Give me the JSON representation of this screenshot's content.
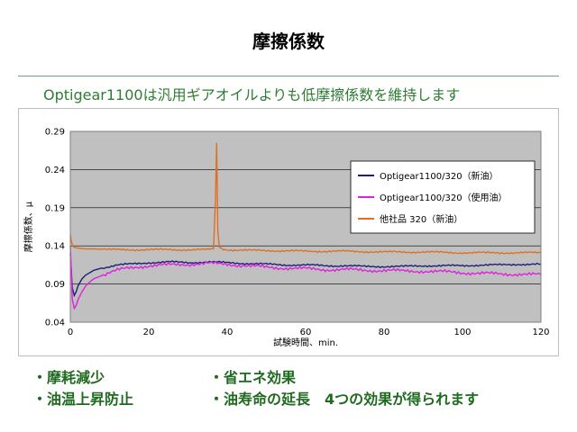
{
  "slide": {
    "title": "摩擦係数",
    "subtitle": "Optigear1100は汎用ギアオイルよりも低摩擦係数を維持します"
  },
  "bullets": {
    "left": [
      "・摩耗減少",
      "・油温上昇防止"
    ],
    "right": [
      "・省エネ効果",
      "・油寿命の延長　4つの効果が得られます"
    ]
  },
  "chart_data": {
    "type": "line",
    "title": "",
    "xlabel": "試験時間、min.",
    "ylabel": "摩擦係数、μ",
    "xlim": [
      0,
      120
    ],
    "ylim": [
      0.04,
      0.29
    ],
    "xticks": [
      0,
      20,
      40,
      60,
      80,
      100,
      120
    ],
    "yticks": [
      0.04,
      0.09,
      0.14,
      0.19,
      0.24,
      0.29
    ],
    "grid": true,
    "legend_position": "top-right",
    "colors": {
      "plot_bg": "#c0c0c0",
      "grid": "#000000"
    },
    "series": [
      {
        "name": "Optigear1100/320（新油）",
        "color": "#1f1f7a",
        "x": [
          0,
          0.5,
          1,
          1.5,
          2,
          3,
          4,
          5,
          6,
          8,
          10,
          12,
          15,
          18,
          20,
          25,
          30,
          35,
          40,
          45,
          50,
          55,
          60,
          65,
          70,
          75,
          80,
          85,
          90,
          95,
          100,
          105,
          110,
          115,
          120
        ],
        "y": [
          0.13,
          0.085,
          0.075,
          0.08,
          0.088,
          0.097,
          0.102,
          0.105,
          0.108,
          0.111,
          0.113,
          0.115,
          0.116,
          0.117,
          0.118,
          0.119,
          0.118,
          0.119,
          0.118,
          0.117,
          0.116,
          0.115,
          0.115,
          0.114,
          0.114,
          0.113,
          0.113,
          0.113,
          0.114,
          0.114,
          0.114,
          0.115,
          0.115,
          0.116,
          0.116
        ]
      },
      {
        "name": "Optigear1100/320（使用油）",
        "color": "#e020e0",
        "x": [
          0,
          0.5,
          1,
          1.5,
          2,
          3,
          4,
          5,
          6,
          8,
          10,
          12,
          15,
          18,
          20,
          25,
          30,
          35,
          40,
          45,
          50,
          55,
          60,
          65,
          70,
          75,
          80,
          85,
          90,
          95,
          100,
          105,
          110,
          115,
          120
        ],
        "y": [
          0.14,
          0.07,
          0.058,
          0.062,
          0.07,
          0.08,
          0.088,
          0.093,
          0.097,
          0.101,
          0.105,
          0.108,
          0.111,
          0.113,
          0.114,
          0.115,
          0.116,
          0.117,
          0.116,
          0.114,
          0.112,
          0.111,
          0.11,
          0.109,
          0.109,
          0.108,
          0.108,
          0.107,
          0.107,
          0.106,
          0.105,
          0.104,
          0.103,
          0.103,
          0.102
        ]
      },
      {
        "name": "他社品 320（新油）",
        "color": "#e07020",
        "x": [
          0,
          0.3,
          0.6,
          1,
          2,
          4,
          6,
          10,
          15,
          20,
          25,
          30,
          35,
          36.5,
          37,
          37.3,
          37.6,
          38,
          39,
          40,
          45,
          50,
          60,
          70,
          80,
          90,
          100,
          110,
          120
        ],
        "y": [
          0.155,
          0.145,
          0.14,
          0.138,
          0.137,
          0.136,
          0.136,
          0.135,
          0.135,
          0.135,
          0.135,
          0.135,
          0.135,
          0.136,
          0.2,
          0.275,
          0.16,
          0.138,
          0.136,
          0.135,
          0.134,
          0.134,
          0.133,
          0.133,
          0.132,
          0.132,
          0.131,
          0.131,
          0.131
        ]
      }
    ]
  }
}
